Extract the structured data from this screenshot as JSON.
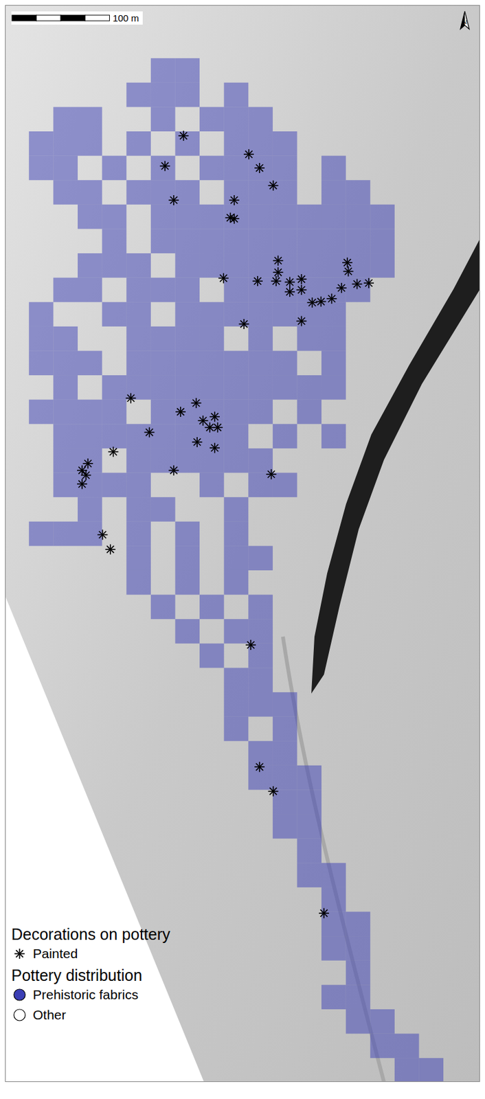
{
  "chart_data": {
    "type": "scatter",
    "tick_labels": false,
    "legend": "lower left",
    "xlim": [
      0,
      487
    ],
    "ylim": [
      0,
      1104
    ],
    "scale_bar": {
      "length": 100,
      "label": "100 m"
    },
    "north_arrow": "N",
    "legend_groups": [
      {
        "title": "Decorations on pottery",
        "items": [
          "Painted"
        ]
      },
      {
        "title": "Pottery distribution",
        "items": [
          "Prehistoric fabrics",
          "Other"
        ]
      }
    ],
    "series": [
      {
        "name": "Painted",
        "marker": "asterisk",
        "color": "#000000",
        "x": [
          183,
          250,
          164,
          261,
          275,
          173,
          235,
          231,
          235,
          280,
          351,
          352,
          259,
          280,
          278,
          292,
          304,
          292,
          304,
          345,
          361,
          373,
          224,
          315,
          324,
          335,
          245,
          304,
          129,
          196,
          180,
          203,
          215,
          210,
          218,
          148,
          197,
          215,
          111,
          173,
          273,
          85,
          79,
          83,
          79,
          100,
          108,
          252,
          261,
          275,
          327
        ],
        "y": [
          970,
          951,
          939,
          937,
          919,
          904,
          904,
          886,
          885,
          842,
          840,
          831,
          821,
          830,
          821,
          820,
          823,
          810,
          812,
          814,
          818,
          819,
          824,
          799,
          800,
          803,
          777,
          780,
          701,
          696,
          687,
          678,
          682,
          671,
          671,
          666,
          656,
          650,
          646,
          627,
          623,
          634,
          627,
          622,
          613,
          561,
          546,
          448,
          323,
          298,
          173
        ]
      },
      {
        "name": "Prehistoric fabrics",
        "marker": "square",
        "color": "#3b3fb5",
        "cell_size": 25,
        "rows": [
          {
            "y": 1037,
            "x": [
              162,
              187
            ]
          },
          {
            "y": 1012,
            "x": [
              137,
              162,
              187,
              237
            ]
          },
          {
            "y": 987,
            "x": [
              62,
              87,
              162,
              212,
              237,
              262
            ]
          },
          {
            "y": 962,
            "x": [
              37,
              62,
              87,
              137,
              187,
              237,
              262,
              287
            ]
          },
          {
            "y": 937,
            "x": [
              37,
              62,
              112,
              162,
              212,
              237,
              262,
              287,
              337
            ]
          },
          {
            "y": 912,
            "x": [
              62,
              87,
              137,
              162,
              187,
              237,
              262,
              287,
              337,
              362
            ]
          },
          {
            "y": 887,
            "x": [
              87,
              112,
              162,
              187,
              212,
              237,
              262,
              287,
              312,
              337,
              362,
              387
            ]
          },
          {
            "y": 862,
            "x": [
              112,
              162,
              187,
              212,
              237,
              262,
              287,
              312,
              337,
              362,
              387
            ]
          },
          {
            "y": 837,
            "x": [
              87,
              112,
              137,
              187,
              212,
              237,
              262,
              287,
              312,
              337,
              362,
              387
            ]
          },
          {
            "y": 812,
            "x": [
              62,
              87,
              137,
              162,
              187,
              237,
              262,
              287,
              312,
              337,
              362
            ]
          },
          {
            "y": 787,
            "x": [
              37,
              112,
              137,
              187,
              212,
              237,
              262,
              287,
              312,
              337
            ]
          },
          {
            "y": 762,
            "x": [
              37,
              62,
              137,
              162,
              187,
              212,
              262,
              312,
              337
            ]
          },
          {
            "y": 737,
            "x": [
              37,
              62,
              87,
              137,
              162,
              187,
              212,
              237,
              262,
              287,
              337
            ]
          },
          {
            "y": 712,
            "x": [
              62,
              112,
              137,
              162,
              187,
              212,
              237,
              262,
              287,
              312,
              337
            ]
          },
          {
            "y": 687,
            "x": [
              37,
              62,
              87,
              112,
              162,
              187,
              212,
              237,
              262,
              312
            ]
          },
          {
            "y": 662,
            "x": [
              62,
              87,
              112,
              137,
              162,
              187,
              212,
              237,
              287,
              337
            ]
          },
          {
            "y": 637,
            "x": [
              62,
              87,
              137,
              162,
              187,
              212,
              237,
              262
            ]
          },
          {
            "y": 612,
            "x": [
              62,
              87,
              112,
              137,
              212,
              262,
              287
            ]
          },
          {
            "y": 587,
            "x": [
              87,
              137,
              162,
              237
            ]
          },
          {
            "y": 562,
            "x": [
              37,
              62,
              87,
              137,
              187,
              237
            ]
          },
          {
            "y": 537,
            "x": [
              137,
              187,
              237,
              262
            ]
          },
          {
            "y": 512,
            "x": [
              137,
              187,
              237
            ]
          },
          {
            "y": 487,
            "x": [
              162,
              212,
              262
            ]
          },
          {
            "y": 462,
            "x": [
              187,
              237,
              262
            ]
          },
          {
            "y": 437,
            "x": [
              212,
              262
            ]
          },
          {
            "y": 412,
            "x": [
              237,
              262
            ]
          },
          {
            "y": 387,
            "x": [
              237,
              262,
              287
            ]
          },
          {
            "y": 362,
            "x": [
              237,
              287
            ]
          },
          {
            "y": 337,
            "x": [
              262,
              287
            ]
          },
          {
            "y": 312,
            "x": [
              262,
              287,
              312
            ]
          },
          {
            "y": 287,
            "x": [
              287,
              312
            ]
          },
          {
            "y": 262,
            "x": [
              287,
              312
            ]
          },
          {
            "y": 237,
            "x": [
              312
            ]
          },
          {
            "y": 212,
            "x": [
              312,
              337
            ]
          },
          {
            "y": 187,
            "x": [
              337
            ]
          },
          {
            "y": 162,
            "x": [
              337,
              362
            ]
          },
          {
            "y": 137,
            "x": [
              337,
              362
            ]
          },
          {
            "y": 112,
            "x": [
              362
            ]
          },
          {
            "y": 87,
            "x": [
              337,
              362
            ]
          },
          {
            "y": 62,
            "x": [
              362,
              387
            ]
          },
          {
            "y": 37,
            "x": [
              387,
              412
            ]
          },
          {
            "y": 12,
            "x": [
              412,
              437
            ]
          }
        ]
      },
      {
        "name": "Other",
        "marker": "circle",
        "color": "#ffffff",
        "x": [],
        "y": []
      }
    ]
  }
}
